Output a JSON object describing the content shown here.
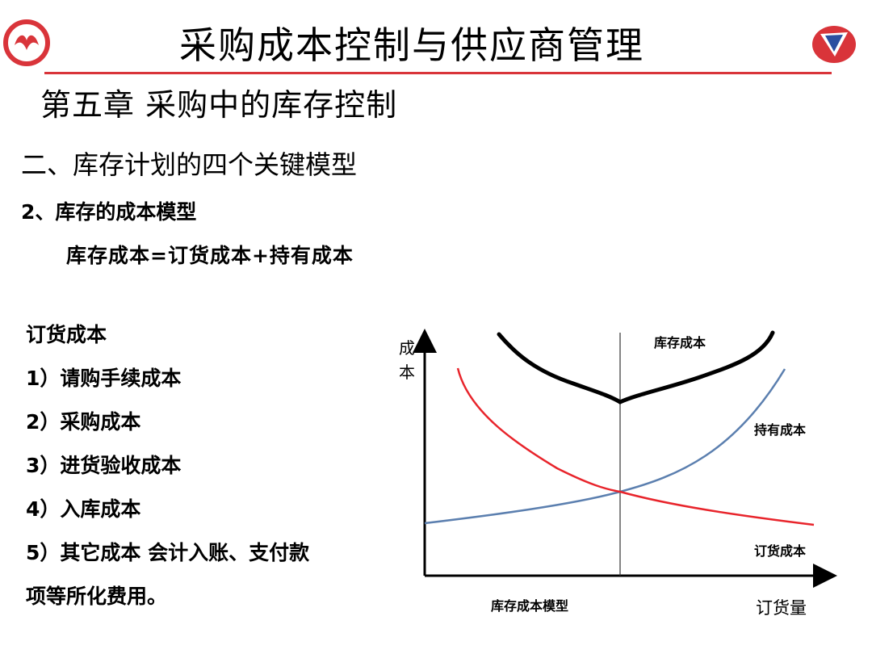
{
  "header": {
    "title": "采购成本控制与供应商管理",
    "left_logo_icon": "dongfeng-logo-icon",
    "right_logo_icon": "company-emblem-icon"
  },
  "chapter_title": "第五章  采购中的库存控制",
  "section_title": "二、库存计划的四个关键模型",
  "subsection_title": "2、库存的成本模型",
  "formula": "库存成本=订货成本+持有成本",
  "order_cost": {
    "heading": "订货成本",
    "items": [
      "1）请购手续成本",
      "2）采购成本",
      "3）进货验收成本",
      "4）入库成本",
      "5）其它成本     会计入账、支付款",
      "项等所化费用。"
    ]
  },
  "chart_data": {
    "type": "line",
    "ylabel": "成本",
    "xlabel": "订货量",
    "caption": "库存成本模型",
    "grid": false,
    "series": [
      {
        "name": "库存成本",
        "color": "#000000"
      },
      {
        "name": "持有成本",
        "color": "#5b7faf"
      },
      {
        "name": "订货成本",
        "color": "#e8242b"
      }
    ],
    "optimum_marker": "vertical-line"
  },
  "colors": {
    "accent_red": "#d9343a",
    "total_cost": "#000000",
    "holding_cost": "#5b7faf",
    "ordering_cost": "#e8242b"
  }
}
